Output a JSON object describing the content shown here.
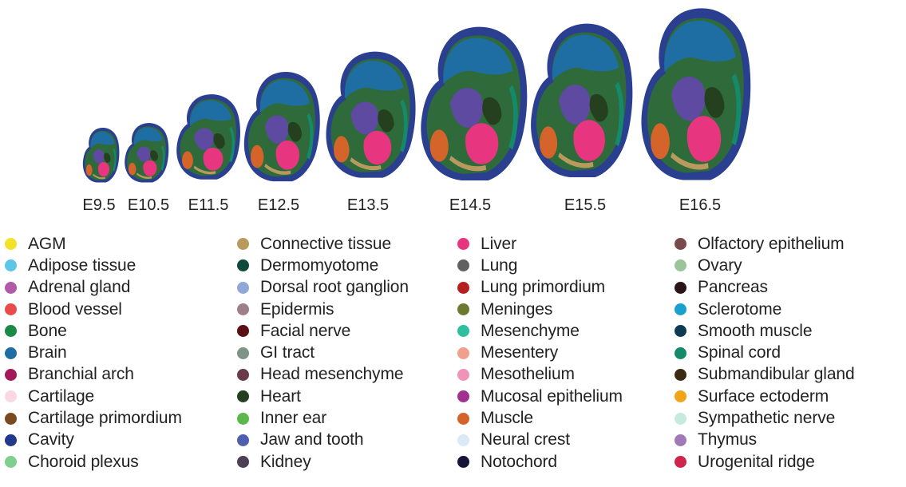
{
  "stages": [
    "E9.5",
    "E10.5",
    "E11.5",
    "E12.5",
    "E13.5",
    "E14.5",
    "E15.5",
    "E16.5"
  ],
  "legend": [
    [
      {
        "label": "AGM",
        "color": "#f2e22a"
      },
      {
        "label": "Adipose tissue",
        "color": "#5cc6e8"
      },
      {
        "label": "Adrenal gland",
        "color": "#b05aa8"
      },
      {
        "label": "Blood vessel",
        "color": "#e94b4b"
      },
      {
        "label": "Bone",
        "color": "#1b8a44"
      },
      {
        "label": "Brain",
        "color": "#1f6ea3"
      },
      {
        "label": "Branchial arch",
        "color": "#a3195b"
      },
      {
        "label": "Cartilage",
        "color": "#fbd6e3"
      },
      {
        "label": "Cartilage primordium",
        "color": "#7a4a1e"
      },
      {
        "label": "Cavity",
        "color": "#233a8c"
      },
      {
        "label": "Choroid plexus",
        "color": "#7fcf8e"
      }
    ],
    [
      {
        "label": "Connective tissue",
        "color": "#b89a5e"
      },
      {
        "label": "Dermomyotome",
        "color": "#0e4a3c"
      },
      {
        "label": "Dorsal root ganglion",
        "color": "#8fa8d8"
      },
      {
        "label": "Epidermis",
        "color": "#9e7f86"
      },
      {
        "label": "Facial nerve",
        "color": "#5a0f12"
      },
      {
        "label": "GI tract",
        "color": "#7f9488"
      },
      {
        "label": "Head mesenchyme",
        "color": "#6a3a4a"
      },
      {
        "label": "Heart",
        "color": "#24401f"
      },
      {
        "label": "Inner ear",
        "color": "#5db84b"
      },
      {
        "label": "Jaw and tooth",
        "color": "#4e5fb0"
      },
      {
        "label": "Kidney",
        "color": "#4d3f55"
      }
    ],
    [
      {
        "label": "Liver",
        "color": "#e8357f"
      },
      {
        "label": "Lung",
        "color": "#606060"
      },
      {
        "label": "Lung primordium",
        "color": "#b3201e"
      },
      {
        "label": "Meninges",
        "color": "#6b7a2e"
      },
      {
        "label": "Mesenchyme",
        "color": "#2ebea0"
      },
      {
        "label": "Mesentery",
        "color": "#f2a08e"
      },
      {
        "label": "Mesothelium",
        "color": "#ef93b9"
      },
      {
        "label": "Mucosal epithelium",
        "color": "#a0318f"
      },
      {
        "label": "Muscle",
        "color": "#d5642a"
      },
      {
        "label": "Neural crest",
        "color": "#dbe8f6"
      },
      {
        "label": "Notochord",
        "color": "#15153a"
      }
    ],
    [
      {
        "label": "Olfactory epithelium",
        "color": "#7a4a4a"
      },
      {
        "label": "Ovary",
        "color": "#9cc499"
      },
      {
        "label": "Pancreas",
        "color": "#2a1418"
      },
      {
        "label": "Sclerotome",
        "color": "#1aa0d0"
      },
      {
        "label": "Smooth muscle",
        "color": "#0e3a52"
      },
      {
        "label": "Spinal cord",
        "color": "#148a6a"
      },
      {
        "label": "Submandibular gland",
        "color": "#3a2a14"
      },
      {
        "label": "Surface ectoderm",
        "color": "#f2a418"
      },
      {
        "label": "Sympathetic nerve",
        "color": "#c6eadb"
      },
      {
        "label": "Thymus",
        "color": "#a07ab8"
      },
      {
        "label": "Urogenital ridge",
        "color": "#d0254a"
      }
    ]
  ]
}
